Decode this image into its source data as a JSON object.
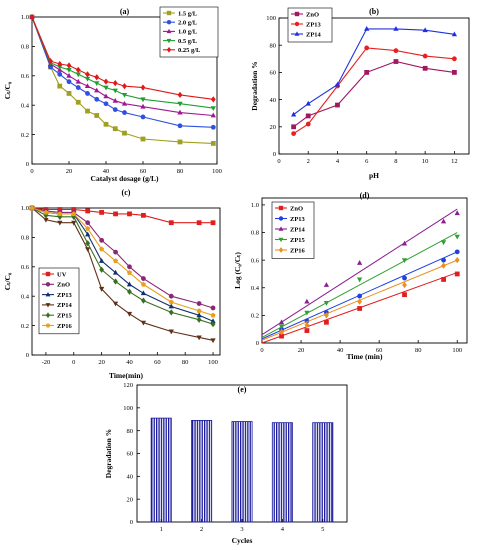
{
  "chart_data": [
    {
      "id": "a",
      "type": "line",
      "title": "(a)",
      "xlabel": "Catalyst dosage (g/L)",
      "ylabel": "Cₜ/C₀",
      "xlim": [
        0,
        100
      ],
      "ylim": [
        0,
        1.0
      ],
      "xticks": [
        0,
        20,
        40,
        60,
        80,
        100
      ],
      "yticks": [
        0,
        0.2,
        0.4,
        0.6,
        0.8,
        1.0
      ],
      "legend_position": "top-right",
      "series": [
        {
          "name": "1.5 g/L",
          "color": "#a0a020",
          "marker": "square",
          "x": [
            0,
            10,
            15,
            20,
            25,
            30,
            35,
            40,
            45,
            50,
            60,
            80,
            98
          ],
          "y": [
            1.0,
            0.66,
            0.53,
            0.48,
            0.42,
            0.36,
            0.33,
            0.27,
            0.24,
            0.21,
            0.17,
            0.15,
            0.14
          ]
        },
        {
          "name": "2.0 g/L",
          "color": "#3050e0",
          "marker": "circle",
          "x": [
            0,
            10,
            15,
            20,
            25,
            30,
            35,
            40,
            45,
            50,
            60,
            80,
            98
          ],
          "y": [
            1.0,
            0.66,
            0.61,
            0.56,
            0.52,
            0.48,
            0.44,
            0.41,
            0.37,
            0.35,
            0.32,
            0.26,
            0.25
          ]
        },
        {
          "name": "1.0 g/L",
          "color": "#a01890",
          "marker": "triangle",
          "x": [
            0,
            10,
            15,
            20,
            25,
            30,
            35,
            40,
            45,
            50,
            60,
            80,
            98
          ],
          "y": [
            1.0,
            0.68,
            0.64,
            0.6,
            0.56,
            0.53,
            0.5,
            0.46,
            0.43,
            0.41,
            0.39,
            0.35,
            0.33
          ]
        },
        {
          "name": "0.5 g/L",
          "color": "#20a030",
          "marker": "triangle-down",
          "x": [
            0,
            10,
            15,
            20,
            25,
            30,
            35,
            40,
            45,
            50,
            60,
            80,
            98
          ],
          "y": [
            1.0,
            0.69,
            0.66,
            0.64,
            0.61,
            0.58,
            0.55,
            0.52,
            0.5,
            0.47,
            0.44,
            0.41,
            0.38
          ]
        },
        {
          "name": "0.25 g/L",
          "color": "#e01818",
          "marker": "diamond",
          "x": [
            0,
            10,
            15,
            20,
            25,
            30,
            35,
            40,
            45,
            50,
            60,
            80,
            98
          ],
          "y": [
            1.0,
            0.7,
            0.68,
            0.67,
            0.64,
            0.61,
            0.59,
            0.56,
            0.55,
            0.53,
            0.52,
            0.47,
            0.44
          ]
        }
      ]
    },
    {
      "id": "b",
      "type": "line",
      "title": "(b)",
      "xlabel": "pH",
      "ylabel": "Degradation %",
      "xlim": [
        0,
        13
      ],
      "ylim": [
        0,
        100
      ],
      "xticks": [
        0,
        2,
        4,
        6,
        8,
        10,
        12
      ],
      "yticks": [
        0,
        20,
        40,
        60,
        80,
        100
      ],
      "legend_position": "top-left",
      "series": [
        {
          "name": "ZnO",
          "color": "#a01860",
          "marker": "square",
          "x": [
            1,
            2,
            4,
            6,
            8,
            10,
            12
          ],
          "y": [
            20,
            28,
            36,
            60,
            68,
            63,
            60
          ]
        },
        {
          "name": "ZP13",
          "color": "#e82020",
          "marker": "circle",
          "x": [
            1,
            2,
            4,
            6,
            8,
            10,
            12
          ],
          "y": [
            15,
            22,
            50,
            78,
            76,
            72,
            70
          ]
        },
        {
          "name": "ZP14",
          "color": "#2030e0",
          "marker": "triangle",
          "x": [
            1,
            2,
            4,
            6,
            8,
            10,
            12
          ],
          "y": [
            29,
            37,
            51,
            92,
            92,
            91,
            88
          ]
        }
      ]
    },
    {
      "id": "c",
      "type": "line",
      "title": "(c)",
      "xlabel": "Time(min)",
      "ylabel": "Cₜ/C₀",
      "xlim": [
        -30,
        105
      ],
      "ylim": [
        0,
        1.0
      ],
      "xticks": [
        -20,
        0,
        20,
        40,
        60,
        80,
        100
      ],
      "yticks": [
        0,
        0.2,
        0.4,
        0.6,
        0.8,
        1.0
      ],
      "legend_position": "bottom-left",
      "series": [
        {
          "name": "UV",
          "color": "#e02020",
          "marker": "square",
          "x": [
            -30,
            -20,
            -10,
            0,
            10,
            20,
            30,
            40,
            50,
            70,
            90,
            100
          ],
          "y": [
            1.0,
            0.99,
            0.99,
            0.99,
            0.98,
            0.97,
            0.96,
            0.96,
            0.95,
            0.9,
            0.9,
            0.9
          ]
        },
        {
          "name": "ZnO",
          "color": "#8a2878",
          "marker": "circle",
          "x": [
            -30,
            -20,
            -10,
            0,
            10,
            20,
            30,
            40,
            50,
            70,
            90,
            100
          ],
          "y": [
            1.0,
            0.98,
            0.97,
            0.97,
            0.9,
            0.78,
            0.7,
            0.6,
            0.52,
            0.4,
            0.35,
            0.32
          ]
        },
        {
          "name": "ZP13",
          "color": "#103070",
          "marker": "triangle",
          "x": [
            -30,
            -20,
            -10,
            0,
            10,
            20,
            30,
            40,
            50,
            70,
            90,
            100
          ],
          "y": [
            1.0,
            0.97,
            0.96,
            0.96,
            0.82,
            0.64,
            0.56,
            0.48,
            0.42,
            0.33,
            0.27,
            0.23
          ]
        },
        {
          "name": "ZP14",
          "color": "#603018",
          "marker": "triangle-down",
          "x": [
            -30,
            -20,
            -10,
            0,
            10,
            20,
            30,
            40,
            50,
            70,
            90,
            100
          ],
          "y": [
            1.0,
            0.92,
            0.9,
            0.9,
            0.72,
            0.45,
            0.35,
            0.28,
            0.22,
            0.16,
            0.12,
            0.1
          ]
        },
        {
          "name": "ZP15",
          "color": "#387020",
          "marker": "diamond",
          "x": [
            -30,
            -20,
            -10,
            0,
            10,
            20,
            30,
            40,
            50,
            70,
            90,
            100
          ],
          "y": [
            1.0,
            0.95,
            0.94,
            0.94,
            0.76,
            0.58,
            0.5,
            0.43,
            0.37,
            0.29,
            0.24,
            0.21
          ]
        },
        {
          "name": "ZP16",
          "color": "#e8a020",
          "marker": "pentagon",
          "x": [
            -30,
            -20,
            -10,
            0,
            10,
            20,
            30,
            40,
            50,
            70,
            90,
            100
          ],
          "y": [
            1.0,
            0.97,
            0.96,
            0.96,
            0.86,
            0.72,
            0.64,
            0.56,
            0.48,
            0.36,
            0.3,
            0.27
          ]
        }
      ]
    },
    {
      "id": "d",
      "type": "scatter",
      "title": "(d)",
      "xlabel": "Time (min)",
      "ylabel": "Log (C₀/Cₜ)",
      "xlim": [
        0,
        105
      ],
      "ylim": [
        0,
        1.05
      ],
      "xticks": [
        0,
        20,
        40,
        60,
        80,
        100
      ],
      "yticks": [
        0,
        0.2,
        0.4,
        0.6,
        0.8,
        1.0
      ],
      "legend_position": "top-left",
      "series": [
        {
          "name": "ZnO",
          "color": "#e02020",
          "marker": "square",
          "x": [
            10,
            23,
            33,
            50,
            73,
            93,
            100
          ],
          "y": [
            0.05,
            0.09,
            0.15,
            0.25,
            0.35,
            0.46,
            0.5
          ],
          "fit": [
            0,
            0.51
          ]
        },
        {
          "name": "ZP13",
          "color": "#2040e0",
          "marker": "circle",
          "x": [
            10,
            23,
            33,
            50,
            73,
            93,
            100
          ],
          "y": [
            0.1,
            0.16,
            0.22,
            0.34,
            0.47,
            0.6,
            0.66
          ],
          "fit": [
            0.03,
            0.66
          ]
        },
        {
          "name": "ZP14",
          "color": "#8a2090",
          "marker": "triangle",
          "x": [
            10,
            23,
            33,
            50,
            73,
            93,
            100
          ],
          "y": [
            0.15,
            0.3,
            0.42,
            0.58,
            0.72,
            0.88,
            0.94
          ],
          "fit": [
            0.06,
            0.97
          ]
        },
        {
          "name": "ZP15",
          "color": "#30a030",
          "marker": "triangle-down",
          "x": [
            10,
            23,
            33,
            50,
            73,
            93,
            100
          ],
          "y": [
            0.12,
            0.22,
            0.29,
            0.46,
            0.6,
            0.73,
            0.77
          ],
          "fit": [
            0.04,
            0.8
          ]
        },
        {
          "name": "ZP16",
          "color": "#e89020",
          "marker": "diamond",
          "x": [
            10,
            23,
            33,
            50,
            73,
            93,
            100
          ],
          "y": [
            0.08,
            0.13,
            0.2,
            0.3,
            0.42,
            0.56,
            0.6
          ],
          "fit": [
            0.02,
            0.6
          ]
        }
      ]
    },
    {
      "id": "e",
      "type": "bar",
      "title": "(e)",
      "xlabel": "Cycles",
      "ylabel": "Degradation %",
      "ylim": [
        0,
        120
      ],
      "yticks": [
        0,
        20,
        40,
        60,
        80,
        100,
        120
      ],
      "categories": [
        "1",
        "2",
        "3",
        "4",
        "5"
      ],
      "values": [
        91,
        89,
        88,
        87,
        87
      ],
      "bar_color": "#1a1a9a"
    }
  ]
}
